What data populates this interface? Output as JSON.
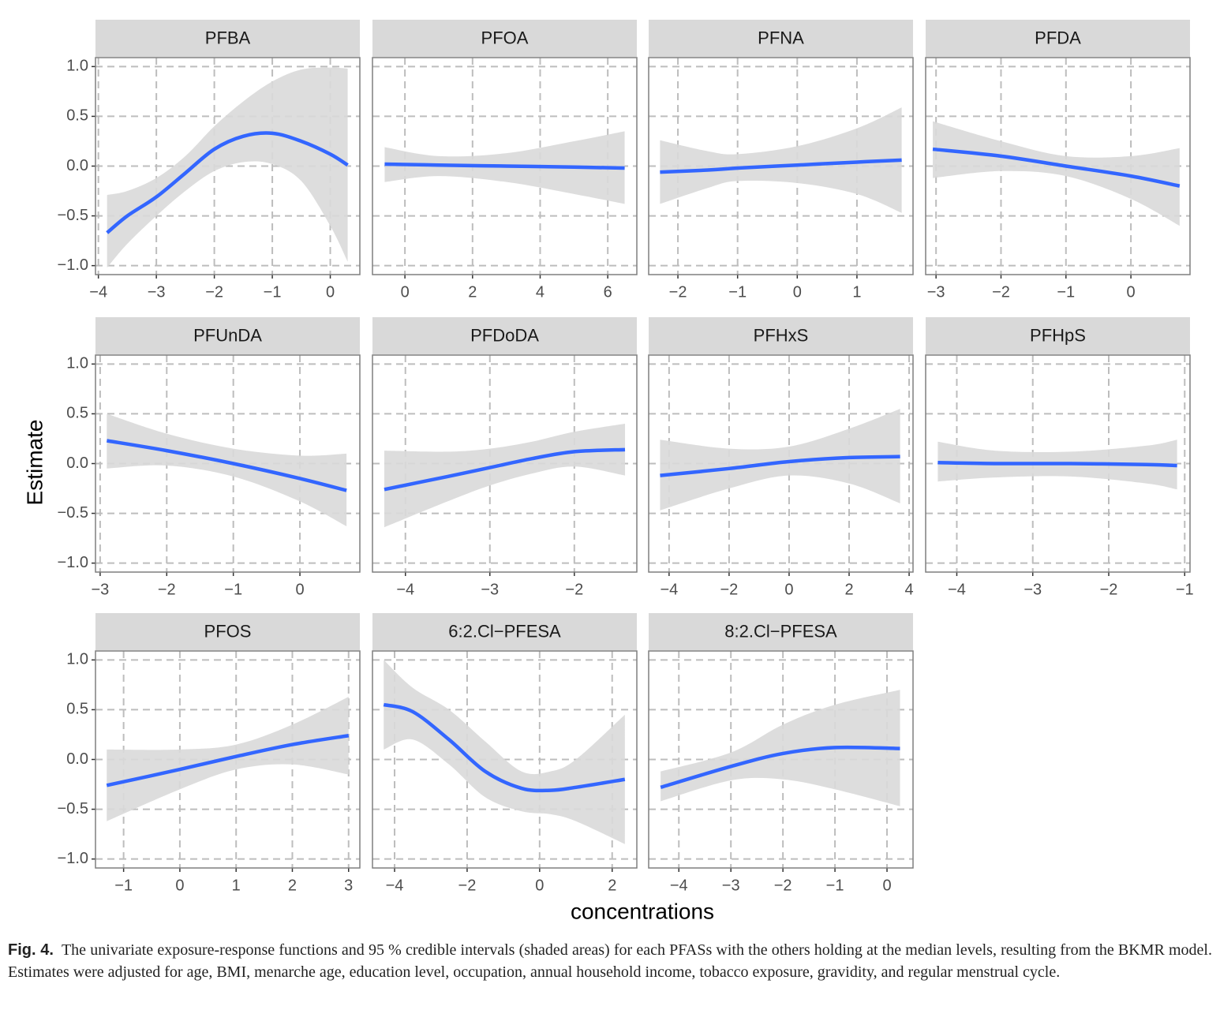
{
  "chart_data": {
    "type": "facet-line",
    "xlabel": "concentrations",
    "ylabel": "Estimate",
    "ylim": [
      -1.09,
      1.09
    ],
    "yticks": [
      {
        "value": -1,
        "label": "−1.0"
      },
      {
        "value": -0.5,
        "label": "−0.5"
      },
      {
        "value": 0,
        "label": "0.0"
      },
      {
        "value": 0.5,
        "label": "0.5"
      },
      {
        "value": 1,
        "label": "1.0"
      }
    ],
    "color": "#3366ff",
    "band_color": "#d9d9d9",
    "grid": true,
    "panels": [
      {
        "title": "PFBA",
        "xlim": [
          -4.05,
          0.51
        ],
        "xticks": [
          {
            "value": -4,
            "label": "−4"
          },
          {
            "value": -3,
            "label": "−3"
          },
          {
            "value": -2,
            "label": "−2"
          },
          {
            "value": -1,
            "label": "−1"
          },
          0
        ],
        "x": [
          -3.85,
          -3.5,
          -3,
          -2.5,
          -2,
          -1.5,
          -1,
          -0.5,
          0,
          0.3
        ],
        "values": [
          -0.67,
          -0.5,
          -0.31,
          -0.07,
          0.17,
          0.3,
          0.33,
          0.25,
          0.12,
          0.01
        ],
        "upper": [
          -0.29,
          -0.25,
          -0.12,
          0.1,
          0.4,
          0.65,
          0.85,
          0.97,
          0.99,
          0.98
        ],
        "lower": [
          -1.02,
          -0.78,
          -0.5,
          -0.25,
          -0.05,
          0.04,
          0.02,
          -0.15,
          -0.6,
          -0.96
        ]
      },
      {
        "title": "PFOA",
        "xlim": [
          -0.96,
          6.86
        ],
        "xticks": [
          0,
          2,
          4,
          6
        ],
        "x": [
          -0.6,
          1,
          3,
          5,
          6.5
        ],
        "values": [
          0.02,
          0.01,
          0.0,
          -0.01,
          -0.02
        ],
        "upper": [
          0.19,
          0.1,
          0.13,
          0.25,
          0.35
        ],
        "lower": [
          -0.16,
          -0.1,
          -0.16,
          -0.28,
          -0.38
        ]
      },
      {
        "title": "PFNA",
        "xlim": [
          -2.49,
          1.94
        ],
        "xticks": [
          {
            "value": -2,
            "label": "−2"
          },
          {
            "value": -1,
            "label": "−1"
          },
          0,
          1
        ],
        "x": [
          -2.3,
          -1.5,
          -1,
          0,
          1,
          1.75
        ],
        "values": [
          -0.06,
          -0.04,
          -0.02,
          0.01,
          0.04,
          0.06
        ],
        "upper": [
          0.26,
          0.15,
          0.12,
          0.2,
          0.38,
          0.59
        ],
        "lower": [
          -0.38,
          -0.22,
          -0.15,
          -0.17,
          -0.28,
          -0.47
        ]
      },
      {
        "title": "PFDA",
        "xlim": [
          -3.16,
          0.91
        ],
        "xticks": [
          {
            "value": -3,
            "label": "−3"
          },
          {
            "value": -2,
            "label": "−2"
          },
          {
            "value": -1,
            "label": "−1"
          },
          0
        ],
        "x": [
          -3.05,
          -2,
          -1,
          0,
          0.75
        ],
        "values": [
          0.17,
          0.1,
          0.0,
          -0.1,
          -0.2
        ],
        "upper": [
          0.45,
          0.25,
          0.1,
          0.1,
          0.18
        ],
        "lower": [
          -0.12,
          -0.05,
          -0.1,
          -0.33,
          -0.6
        ]
      },
      {
        "title": "PFUnDA",
        "xlim": [
          -3.07,
          0.9
        ],
        "xticks": [
          {
            "value": -3,
            "label": "−3"
          },
          {
            "value": -2,
            "label": "−2"
          },
          {
            "value": -1,
            "label": "−1"
          },
          0
        ],
        "x": [
          -2.9,
          -2,
          -1,
          0,
          0.7
        ],
        "values": [
          0.23,
          0.13,
          0.0,
          -0.15,
          -0.27
        ],
        "upper": [
          0.5,
          0.3,
          0.15,
          0.08,
          0.1
        ],
        "lower": [
          -0.05,
          -0.02,
          -0.13,
          -0.38,
          -0.63
        ]
      },
      {
        "title": "PFDoDA",
        "xlim": [
          -4.39,
          -1.26
        ],
        "xticks": [
          {
            "value": -4,
            "label": "−4"
          },
          {
            "value": -3,
            "label": "−3"
          },
          {
            "value": -2,
            "label": "−2"
          }
        ],
        "x": [
          -4.25,
          -3.5,
          -3,
          -2.5,
          -2,
          -1.4
        ],
        "values": [
          -0.26,
          -0.13,
          -0.04,
          0.05,
          0.12,
          0.14
        ],
        "upper": [
          0.13,
          0.12,
          0.15,
          0.22,
          0.32,
          0.4
        ],
        "lower": [
          -0.64,
          -0.38,
          -0.22,
          -0.1,
          -0.03,
          -0.12
        ]
      },
      {
        "title": "PFHxS",
        "xlim": [
          -4.68,
          4.13
        ],
        "xticks": [
          {
            "value": -4,
            "label": "−4"
          },
          {
            "value": -2,
            "label": "−2"
          },
          0,
          2,
          4
        ],
        "x": [
          -4.3,
          -2,
          0,
          2,
          3.7
        ],
        "values": [
          -0.12,
          -0.05,
          0.02,
          0.06,
          0.07
        ],
        "upper": [
          0.24,
          0.15,
          0.17,
          0.35,
          0.55
        ],
        "lower": [
          -0.47,
          -0.25,
          -0.12,
          -0.2,
          -0.4
        ]
      },
      {
        "title": "PFHpS",
        "xlim": [
          -4.41,
          -0.93
        ],
        "xticks": [
          {
            "value": -4,
            "label": "−4"
          },
          {
            "value": -3,
            "label": "−3"
          },
          {
            "value": -2,
            "label": "−2"
          },
          {
            "value": -1,
            "label": "−1"
          }
        ],
        "x": [
          -4.25,
          -3.5,
          -2.5,
          -1.5,
          -1.1
        ],
        "values": [
          0.01,
          0.0,
          0.0,
          -0.01,
          -0.02
        ],
        "upper": [
          0.22,
          0.13,
          0.12,
          0.18,
          0.24
        ],
        "lower": [
          -0.18,
          -0.14,
          -0.13,
          -0.2,
          -0.26
        ]
      },
      {
        "title": "PFOS",
        "xlim": [
          -1.5,
          3.2
        ],
        "xticks": [
          {
            "value": -1,
            "label": "−1"
          },
          0,
          1,
          2,
          3
        ],
        "x": [
          -1.3,
          0,
          1,
          2,
          3
        ],
        "values": [
          -0.26,
          -0.1,
          0.03,
          0.15,
          0.24
        ],
        "upper": [
          0.1,
          0.1,
          0.15,
          0.35,
          0.63
        ],
        "lower": [
          -0.62,
          -0.3,
          -0.1,
          -0.05,
          -0.15
        ]
      },
      {
        "title": "6:2.Cl−PFESA",
        "xlim": [
          -4.61,
          2.68
        ],
        "xticks": [
          {
            "value": -4,
            "label": "−4"
          },
          {
            "value": -2,
            "label": "−2"
          },
          0,
          2
        ],
        "x": [
          -4.3,
          -3.5,
          -2.5,
          -1.5,
          -0.5,
          0.3,
          1,
          2.35
        ],
        "values": [
          0.55,
          0.48,
          0.2,
          -0.12,
          -0.29,
          -0.31,
          -0.28,
          -0.2
        ],
        "upper": [
          1.0,
          0.72,
          0.5,
          0.18,
          -0.12,
          -0.12,
          0.0,
          0.45
        ],
        "lower": [
          0.1,
          0.2,
          -0.05,
          -0.38,
          -0.52,
          -0.55,
          -0.62,
          -0.85
        ]
      },
      {
        "title": "8:2.Cl−PFESA",
        "xlim": [
          -4.58,
          0.5
        ],
        "xticks": [
          {
            "value": -4,
            "label": "−4"
          },
          {
            "value": -3,
            "label": "−3"
          },
          {
            "value": -2,
            "label": "−2"
          },
          {
            "value": -1,
            "label": "−1"
          },
          0
        ],
        "x": [
          -4.35,
          -3,
          -2,
          -1,
          0.25
        ],
        "values": [
          -0.28,
          -0.07,
          0.06,
          0.12,
          0.11
        ],
        "upper": [
          -0.12,
          0.07,
          0.35,
          0.55,
          0.7
        ],
        "lower": [
          -0.42,
          -0.21,
          -0.2,
          -0.3,
          -0.47
        ]
      }
    ]
  },
  "caption": {
    "label": "Fig. 4.",
    "text": "The univariate exposure-response functions and 95 % credible intervals (shaded areas) for each PFASs with the others holding at the median levels, resulting from the BKMR model. Estimates were adjusted for age, BMI, menarche age, education level, occupation, annual household income, tobacco exposure, gravidity, and regular menstrual cycle."
  }
}
